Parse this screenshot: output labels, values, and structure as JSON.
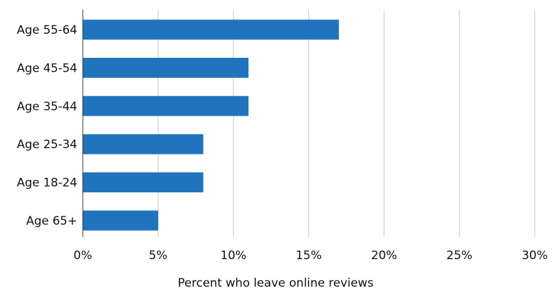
{
  "chart_data": {
    "type": "bar",
    "orientation": "horizontal",
    "title": "",
    "xlabel": "Percent who leave online reviews",
    "ylabel": "",
    "categories": [
      "Age 55-64",
      "Age 45-54",
      "Age 35-44",
      "Age 25-34",
      "Age 18-24",
      "Age 65+"
    ],
    "values": [
      17,
      11,
      11,
      8,
      8,
      5
    ],
    "xlim": [
      0,
      30
    ],
    "x_ticks": [
      0,
      5,
      10,
      15,
      20,
      25,
      30
    ],
    "x_tick_labels": [
      "0%",
      "5%",
      "10%",
      "15%",
      "20%",
      "25%",
      "30%"
    ],
    "grid": "vertical",
    "legend": "none",
    "colors": {
      "bar": "#1f74bd",
      "grid": "#c8c8c8",
      "axis": "#333333"
    }
  }
}
